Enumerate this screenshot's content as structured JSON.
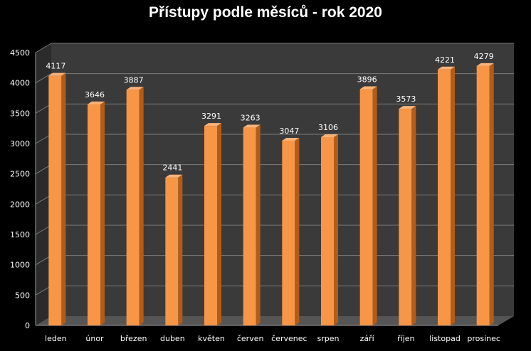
{
  "chart_data": {
    "type": "bar",
    "title": "Přístupy podle měsíců - rok 2020",
    "categories": [
      "leden",
      "únor",
      "březen",
      "duben",
      "květen",
      "červen",
      "červenec",
      "srpen",
      "září",
      "říjen",
      "listopad",
      "prosinec"
    ],
    "values": [
      4117,
      3646,
      3887,
      2441,
      3291,
      3263,
      3047,
      3106,
      3896,
      3573,
      4221,
      4279
    ],
    "xlabel": "",
    "ylabel": "",
    "ylim": [
      0,
      4500
    ],
    "yticks": [
      "0",
      "500",
      "1000",
      "1500",
      "2000",
      "2500",
      "3000",
      "3500",
      "4000",
      "4500"
    ],
    "grid": true,
    "legend": "none",
    "colors": {
      "bar": "#f79646",
      "bar_side": "#b35c17",
      "bar_top": "#fbb27a",
      "background": "#000000",
      "plot_wall": "#3a3a3a",
      "gridline": "#7a7a7a",
      "text": "#ffffff"
    }
  }
}
